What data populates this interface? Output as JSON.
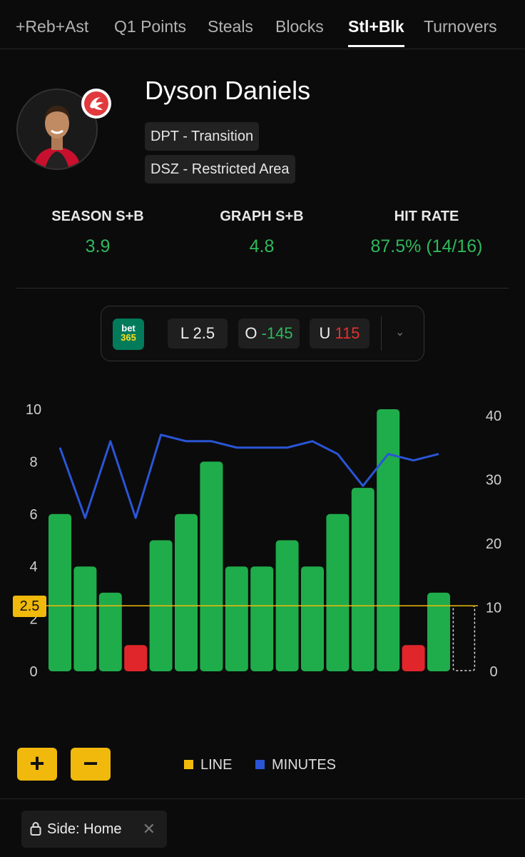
{
  "tabs": [
    "+Reb+Ast",
    "Q1 Points",
    "Steals",
    "Blocks",
    "Stl+Blk",
    "Turnovers"
  ],
  "active_tab": "Stl+Blk",
  "player": {
    "name": "Dyson Daniels",
    "tags": [
      "DPT - Transition",
      "DSZ - Restricted Area"
    ],
    "team_logo_icon": "hawks-logo-icon"
  },
  "stats": [
    {
      "label": "SEASON S+B",
      "value": "3.9"
    },
    {
      "label": "GRAPH S+B",
      "value": "4.8"
    },
    {
      "label": "HIT RATE",
      "value": "87.5% (14/16)"
    }
  ],
  "odds": {
    "book_line1": "bet",
    "book_line2": "365",
    "line_prefix": "L",
    "line_value": "2.5",
    "over_prefix": "O",
    "over_value": "-145",
    "under_prefix": "U",
    "under_value": "115",
    "chevron": "⌄"
  },
  "chart_data": {
    "type": "bar",
    "values": [
      6,
      4,
      3,
      1,
      5,
      6,
      8,
      4,
      4,
      5,
      4,
      6,
      7,
      10,
      1,
      3
    ],
    "line": 2.5,
    "line_label": "2.5",
    "minutes": [
      35,
      24,
      36,
      24,
      37,
      36,
      36,
      35,
      35,
      35,
      36,
      34,
      29,
      34,
      33,
      34
    ],
    "ylim": [
      0,
      10
    ],
    "y_ticks": [
      0,
      2,
      4,
      6,
      8,
      10
    ],
    "y2lim": [
      0,
      40
    ],
    "y2_ticks": [
      0,
      10,
      20,
      30,
      40
    ],
    "colors": {
      "over": "#1fad4b",
      "under": "#e0262b",
      "line": "#f0b90b",
      "minutes": "#2a55d6"
    },
    "next_game_placeholder": true,
    "legend": [
      {
        "name": "LINE",
        "color": "#f0b90b"
      },
      {
        "name": "MINUTES",
        "color": "#2a55d6"
      }
    ]
  },
  "controls": {
    "zoom_in": "+",
    "zoom_out": "−"
  },
  "filter": {
    "label": "Side: Home",
    "close": "✕"
  }
}
